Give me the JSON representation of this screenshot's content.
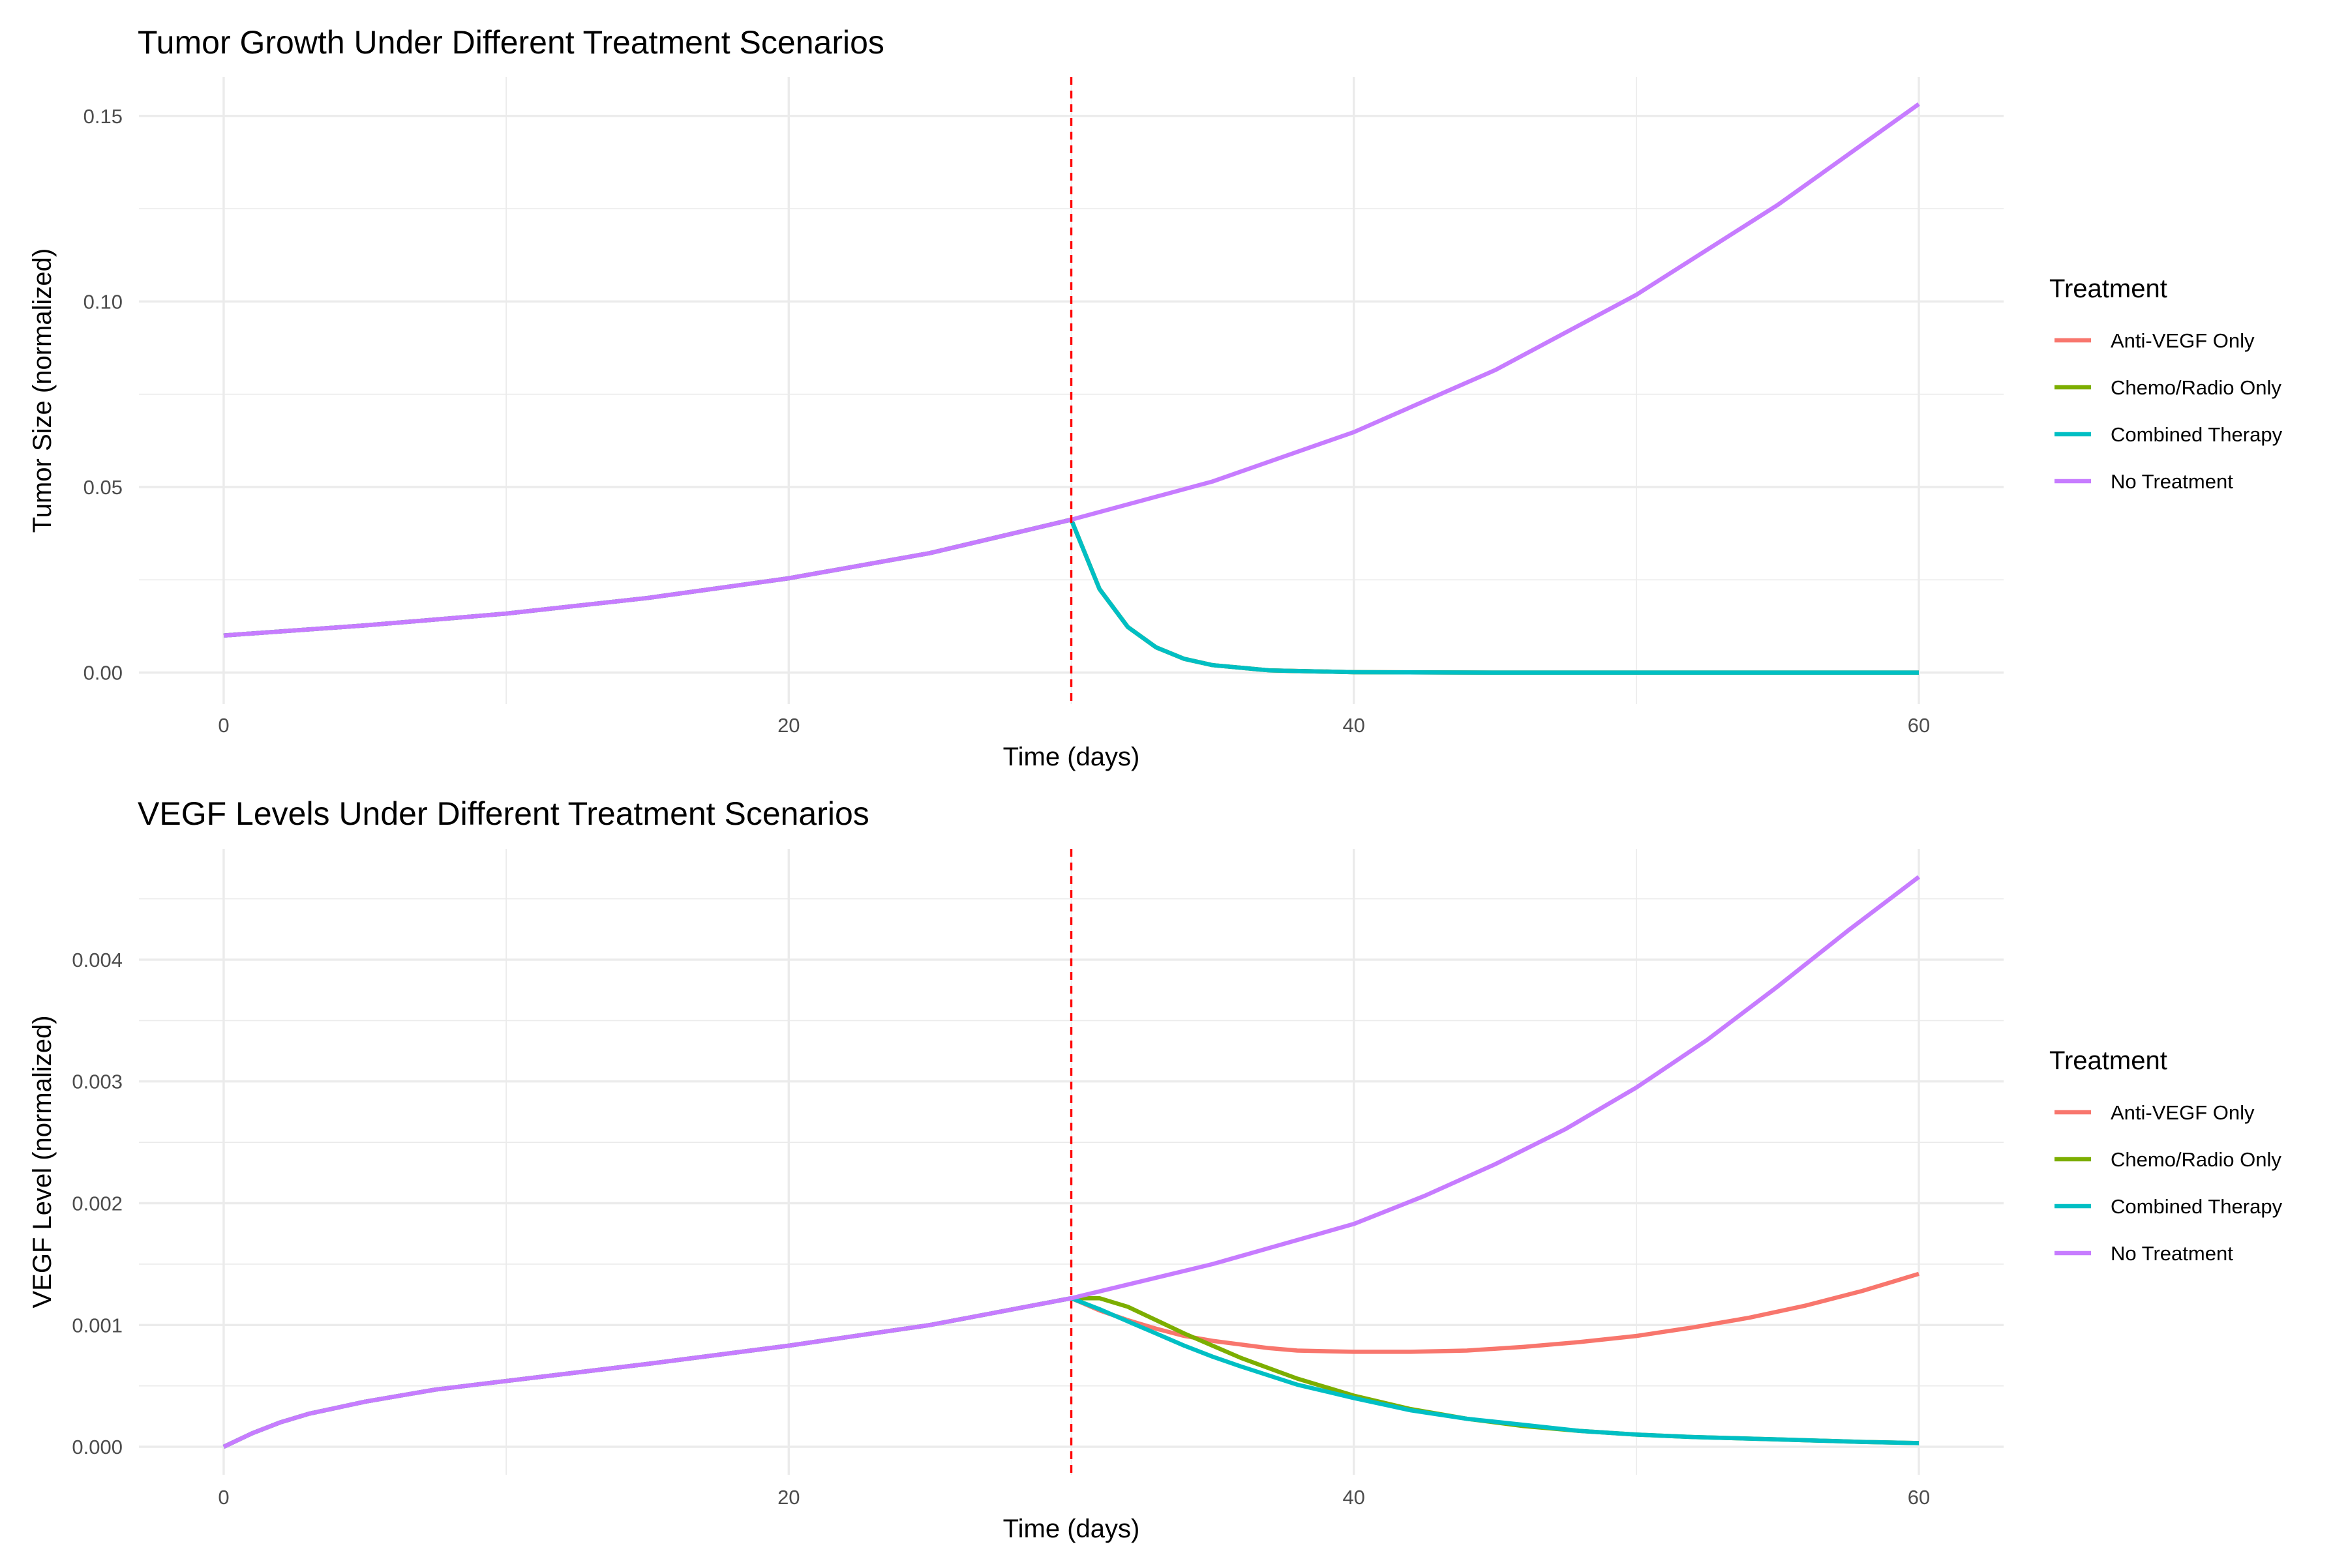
{
  "chart_data": [
    {
      "type": "line",
      "title": "Tumor Growth Under Different Treatment Scenarios",
      "xlabel": "Time (days)",
      "ylabel": "Tumor Size (normalized)",
      "xlim": [
        -3,
        63
      ],
      "ylim": [
        -0.0085,
        0.1605
      ],
      "x_ticks": [
        0,
        20,
        40,
        60
      ],
      "x_tick_labels": [
        "0",
        "20",
        "40",
        "60"
      ],
      "y_ticks": [
        0,
        0.05,
        0.1,
        0.15
      ],
      "y_tick_labels": [
        "0.00",
        "0.05",
        "0.10",
        "0.15"
      ],
      "grid": true,
      "annotations": [
        {
          "type": "vline",
          "x": 30,
          "color": "#ff0000",
          "style": "dashed"
        }
      ],
      "legend": {
        "title": "Treatment",
        "position": "right"
      },
      "series": [
        {
          "name": "Anti-VEGF Only",
          "color": "#f8766d",
          "x": [
            0,
            5,
            10,
            15,
            20,
            25,
            30,
            31,
            32,
            33,
            34,
            35,
            37,
            40,
            45,
            50,
            55,
            60
          ],
          "y": [
            0.01,
            0.0127,
            0.0159,
            0.0201,
            0.0254,
            0.0322,
            0.0412,
            0.0225,
            0.0123,
            0.0068,
            0.0037,
            0.002,
            0.0006,
            0.0001,
            0,
            0,
            0,
            0
          ]
        },
        {
          "name": "Chemo/Radio Only",
          "color": "#7cae00",
          "x": [
            0,
            5,
            10,
            15,
            20,
            25,
            30,
            31,
            32,
            33,
            34,
            35,
            37,
            40,
            45,
            50,
            55,
            60
          ],
          "y": [
            0.01,
            0.0127,
            0.0159,
            0.0201,
            0.0254,
            0.0322,
            0.0412,
            0.0225,
            0.0123,
            0.0068,
            0.0037,
            0.002,
            0.0006,
            0.0001,
            0,
            0,
            0,
            0
          ]
        },
        {
          "name": "Combined Therapy",
          "color": "#00bfc4",
          "x": [
            0,
            5,
            10,
            15,
            20,
            25,
            30,
            31,
            32,
            33,
            34,
            35,
            37,
            40,
            45,
            50,
            55,
            60
          ],
          "y": [
            0.01,
            0.0127,
            0.0159,
            0.0201,
            0.0254,
            0.0322,
            0.0412,
            0.0225,
            0.0123,
            0.0068,
            0.0037,
            0.002,
            0.0006,
            0.0001,
            0,
            0,
            0,
            0
          ]
        },
        {
          "name": "No Treatment",
          "color": "#c77cff",
          "x": [
            0,
            5,
            10,
            15,
            20,
            25,
            30,
            35,
            40,
            45,
            50,
            55,
            60
          ],
          "y": [
            0.01,
            0.0127,
            0.0159,
            0.0201,
            0.0254,
            0.0322,
            0.0412,
            0.0515,
            0.0648,
            0.0815,
            0.1018,
            0.126,
            0.1532
          ]
        }
      ]
    },
    {
      "type": "line",
      "title": "VEGF Levels Under Different Treatment Scenarios",
      "xlabel": "Time (days)",
      "ylabel": "VEGF Level (normalized)",
      "xlim": [
        -3,
        63
      ],
      "ylim": [
        -0.00023,
        0.00491
      ],
      "x_ticks": [
        0,
        20,
        40,
        60
      ],
      "x_tick_labels": [
        "0",
        "20",
        "40",
        "60"
      ],
      "y_ticks": [
        0,
        0.001,
        0.002,
        0.003,
        0.004
      ],
      "y_tick_labels": [
        "0.000",
        "0.001",
        "0.002",
        "0.003",
        "0.004"
      ],
      "grid": true,
      "annotations": [
        {
          "type": "vline",
          "x": 30,
          "color": "#ff0000",
          "style": "dashed"
        }
      ],
      "legend": {
        "title": "Treatment",
        "position": "right"
      },
      "series": [
        {
          "name": "Anti-VEGF Only",
          "color": "#f8766d",
          "x": [
            0,
            1,
            2,
            3,
            5,
            7.5,
            10,
            15,
            20,
            25,
            30,
            31,
            32,
            33,
            34,
            35,
            36,
            37,
            38,
            40,
            41,
            42,
            44,
            46,
            48,
            50,
            52,
            54,
            56,
            58,
            60
          ],
          "y": [
            0,
            0.00011,
            0.0002,
            0.00027,
            0.00037,
            0.00047,
            0.00054,
            0.00068,
            0.00083,
            0.001,
            0.00122,
            0.00112,
            0.00104,
            0.00097,
            0.00091,
            0.00087,
            0.00084,
            0.00081,
            0.00079,
            0.00078,
            0.00078,
            0.00078,
            0.00079,
            0.00082,
            0.00086,
            0.00091,
            0.00098,
            0.00106,
            0.00116,
            0.00128,
            0.00142
          ]
        },
        {
          "name": "Chemo/Radio Only",
          "color": "#7cae00",
          "x": [
            0,
            1,
            2,
            3,
            5,
            7.5,
            10,
            15,
            20,
            25,
            30,
            31,
            32,
            33,
            34,
            35,
            36,
            38,
            40,
            42,
            44,
            46,
            48,
            50,
            52,
            55,
            58,
            60
          ],
          "y": [
            0,
            0.00011,
            0.0002,
            0.00027,
            0.00037,
            0.00047,
            0.00054,
            0.00068,
            0.00083,
            0.001,
            0.00122,
            0.00122,
            0.00115,
            0.00104,
            0.00093,
            0.00083,
            0.00073,
            0.00056,
            0.00042,
            0.00031,
            0.00023,
            0.00017,
            0.00013,
            0.0001,
            8e-05,
            6e-05,
            4e-05,
            3e-05
          ]
        },
        {
          "name": "Combined Therapy",
          "color": "#00bfc4",
          "x": [
            0,
            1,
            2,
            3,
            5,
            7.5,
            10,
            15,
            20,
            25,
            30,
            31,
            32,
            33,
            34,
            35,
            36,
            38,
            40,
            42,
            44,
            46,
            48,
            50,
            52,
            55,
            58,
            60
          ],
          "y": [
            0,
            0.00011,
            0.0002,
            0.00027,
            0.00037,
            0.00047,
            0.00054,
            0.00068,
            0.00083,
            0.001,
            0.00122,
            0.00113,
            0.00103,
            0.00093,
            0.00083,
            0.00074,
            0.00066,
            0.00051,
            0.0004,
            0.0003,
            0.00023,
            0.00018,
            0.00013,
            0.0001,
            8e-05,
            6e-05,
            4e-05,
            3e-05
          ]
        },
        {
          "name": "No Treatment",
          "color": "#c77cff",
          "x": [
            0,
            1,
            2,
            3,
            5,
            7.5,
            10,
            15,
            20,
            25,
            30,
            35,
            40,
            42.5,
            45,
            47.5,
            50,
            52.5,
            55,
            57.5,
            60
          ],
          "y": [
            0,
            0.00011,
            0.0002,
            0.00027,
            0.00037,
            0.00047,
            0.00054,
            0.00068,
            0.00083,
            0.001,
            0.00122,
            0.0015,
            0.00183,
            0.00206,
            0.00232,
            0.00261,
            0.00295,
            0.00334,
            0.00378,
            0.00424,
            0.00468
          ]
        }
      ]
    }
  ]
}
